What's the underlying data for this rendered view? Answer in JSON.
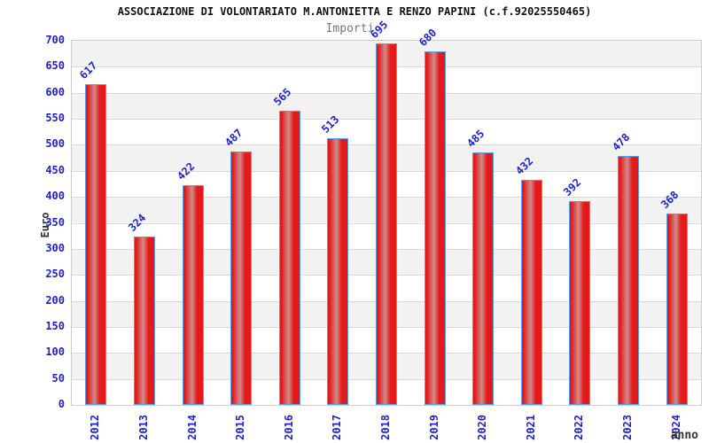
{
  "chart_data": {
    "type": "bar",
    "title": "ASSOCIAZIONE DI VOLONTARIATO M.ANTONIETTA E RENZO PAPINI (c.f.92025550465)",
    "subtitle": "Importi",
    "xlabel": "anno",
    "ylabel": "Euro",
    "categories": [
      "2012",
      "2013",
      "2014",
      "2015",
      "2016",
      "2017",
      "2018",
      "2019",
      "2020",
      "2021",
      "2022",
      "2023",
      "2024"
    ],
    "values": [
      617,
      324,
      422,
      487,
      565,
      513,
      695,
      680,
      485,
      432,
      392,
      478,
      368
    ],
    "ylim": [
      0,
      700
    ],
    "ytick_step": 50,
    "grid": "horizontal-bands",
    "legend": "none",
    "colors": {
      "bar_fill": "#e41a1a",
      "bar_highlight": "#d08c8c",
      "bar_border": "#52a0f0",
      "tick_label": "#2020cc",
      "value_label": "#2020cc",
      "title": "#111111",
      "subtitle": "#787878",
      "axis_title": "#333333",
      "band_gray": "#f2f2f2",
      "band_white": "#ffffff",
      "gridline": "#d9d9d9",
      "plot_border": "#cccccc",
      "background": "#ffffff"
    }
  }
}
